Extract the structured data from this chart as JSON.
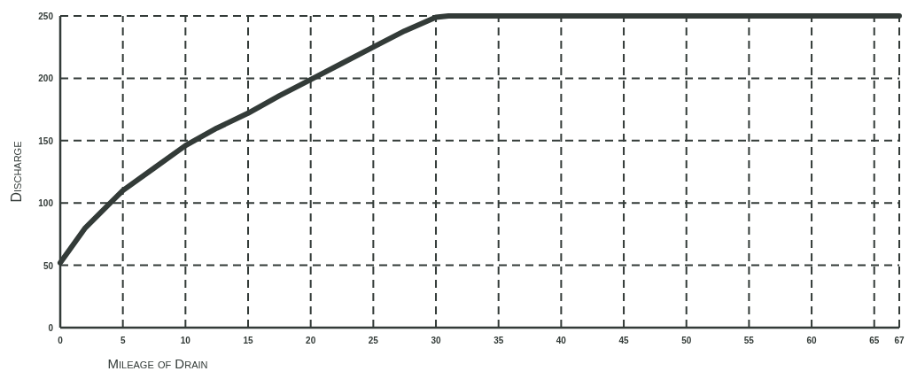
{
  "chart_data": {
    "type": "line",
    "xlabel": "Mileage of Drain",
    "ylabel": "Discharge",
    "x": [
      0,
      2,
      4,
      5,
      7.5,
      10,
      12.5,
      15,
      17.5,
      20,
      22.5,
      25,
      27.5,
      30,
      31,
      40,
      50,
      60,
      67
    ],
    "series": [
      {
        "color": "#333b38",
        "values": [
          52,
          80,
          100,
          110,
          128,
          146,
          160,
          172,
          186,
          199,
          212,
          225,
          238,
          249,
          250,
          250,
          250,
          250,
          250
        ]
      }
    ],
    "xlim": [
      0,
      67
    ],
    "xticks": [
      0,
      5,
      10,
      15,
      20,
      25,
      30,
      35,
      40,
      45,
      50,
      55,
      60,
      65,
      67
    ],
    "ylim": [
      0,
      250
    ],
    "yticks": [
      0,
      50,
      100,
      150,
      200,
      250
    ],
    "grid": true,
    "line_style": "solid",
    "marker": "none"
  }
}
